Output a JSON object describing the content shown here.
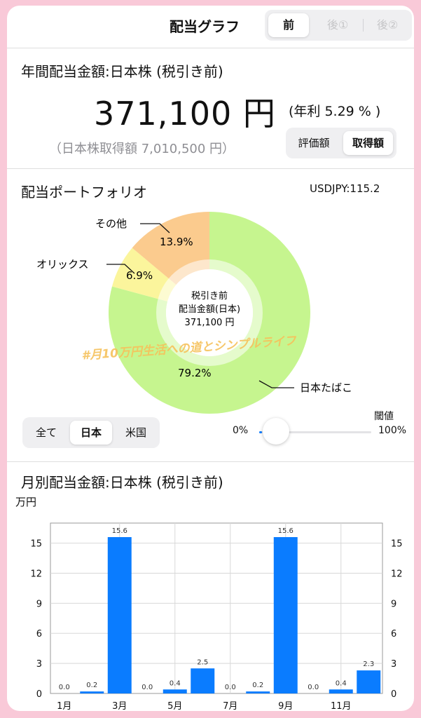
{
  "header": {
    "title": "配当グラフ",
    "tabs": [
      "前",
      "後①",
      "後②"
    ],
    "active_tab": 0
  },
  "annual": {
    "label": "年間配当金額:日本株 (税引き前)",
    "amount": "371,100 円",
    "yield": "(年利 5.29 % )",
    "cost": "（日本株取得額 7,010,500 円）",
    "basis_options": [
      "評価額",
      "取得額"
    ],
    "basis_selected": 1
  },
  "portfolio": {
    "label": "配当ポートフォリオ",
    "fx": "USDJPY:115.2",
    "center_line1": "税引き前",
    "center_line2": "配当金額(日本)",
    "center_line3": "371,100 円",
    "watermark": "#月10万円生活への道とシンプルライフ",
    "slices": [
      {
        "name": "日本たばこ",
        "pct_label": "79.2%",
        "value": 79.2,
        "color": "#c6f58f"
      },
      {
        "name": "オリックス",
        "pct_label": "6.9%",
        "value": 6.9,
        "color": "#fbf59c"
      },
      {
        "name": "その他",
        "pct_label": "13.9%",
        "value": 13.9,
        "color": "#fbcb8e"
      }
    ],
    "country_options": [
      "全て",
      "日本",
      "米国"
    ],
    "country_selected": 1,
    "threshold_label": "閾値",
    "threshold_min": "0%",
    "threshold_max": "100%",
    "threshold_value": 0
  },
  "monthly": {
    "label": "月別配当金額:日本株 (税引き前)",
    "unit": "万円"
  },
  "chart_data": {
    "type": "bar",
    "categories": [
      "1月",
      "2月",
      "3月",
      "4月",
      "5月",
      "6月",
      "7月",
      "8月",
      "9月",
      "10月",
      "11月",
      "12月"
    ],
    "x_tick_labels": [
      "1月",
      "",
      "3月",
      "",
      "5月",
      "",
      "7月",
      "",
      "9月",
      "",
      "11月",
      ""
    ],
    "values": [
      0.0,
      0.2,
      15.6,
      0.0,
      0.4,
      2.5,
      0.0,
      0.2,
      15.6,
      0.0,
      0.4,
      2.3
    ],
    "value_labels": [
      "0.0",
      "0.2",
      "15.6",
      "0.0",
      "0.4",
      "2.5",
      "0.0",
      "0.2",
      "15.6",
      "0.0",
      "0.4",
      "2.3"
    ],
    "ylim": [
      0,
      17
    ],
    "yticks": [
      "0",
      "3",
      "6",
      "9",
      "12",
      "15"
    ],
    "ylabel": "万円",
    "color": "#0a7cff",
    "grid": true
  }
}
